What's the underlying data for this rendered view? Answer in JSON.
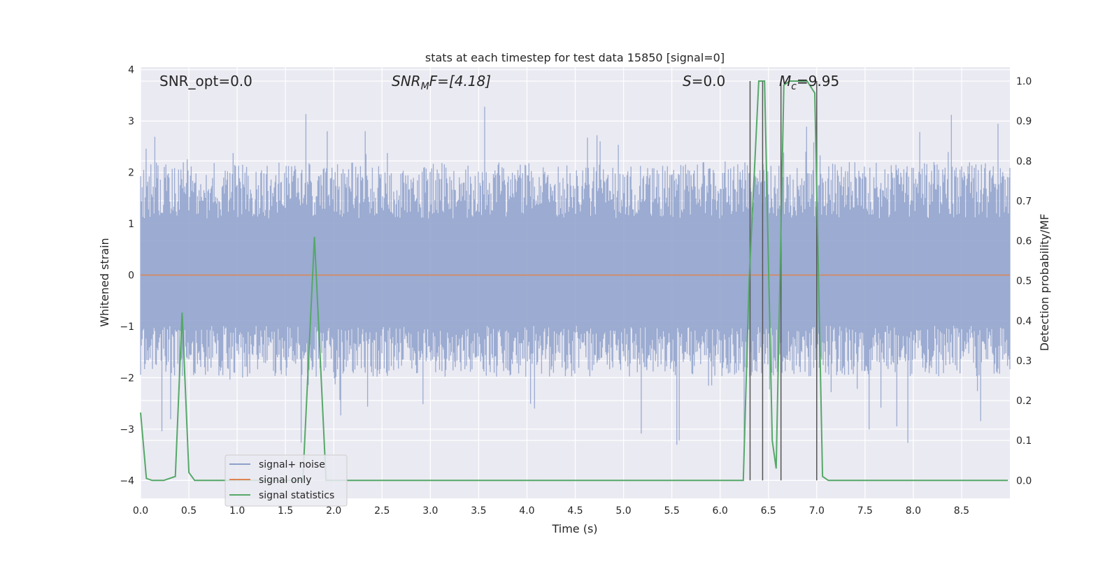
{
  "chart_data": {
    "type": "line",
    "title": "stats at each timestep for test data 15850 [signal=0]",
    "xlabel": "Time (s)",
    "ylabel_left": "Whitened strain",
    "ylabel_right": "Detection probability/MF",
    "xlim": [
      0,
      9.0
    ],
    "ylim_left": [
      -4.35,
      4.05
    ],
    "ylim_right": [
      -0.045,
      1.035
    ],
    "x_ticks": [
      "0.0",
      "0.5",
      "1.0",
      "1.5",
      "2.0",
      "2.5",
      "3.0",
      "3.5",
      "4.0",
      "4.5",
      "5.0",
      "5.5",
      "6.0",
      "6.5",
      "7.0",
      "7.5",
      "8.0",
      "8.5"
    ],
    "y_ticks_left": [
      "4",
      "3",
      "2",
      "1",
      "0",
      "−1",
      "−2",
      "−3",
      "−4"
    ],
    "y_ticks_right": [
      "1.0",
      "0.9",
      "0.8",
      "0.7",
      "0.6",
      "0.5",
      "0.4",
      "0.3",
      "0.2",
      "0.1",
      "0.0"
    ],
    "grid": true,
    "legend_placement": "lower-left",
    "annotations": {
      "snr_opt": "SNR_opt=0.0",
      "snr_mf_base": "SNR",
      "snr_mf_sub": "M",
      "snr_mf_rest": "F=[4.18]",
      "s_italic": "S",
      "s_rest": "=0.0",
      "mc_italic": "M",
      "mc_sub": "c",
      "mc_rest": "=9.95"
    },
    "series": [
      {
        "name": "signal+ noise",
        "color": "#8da0cb",
        "description_kind": "whitened noise, approx. |mean| 1.7, peaks up to 3.3 and down to -4.0",
        "envelope": {
          "upper_typical": 2.0,
          "lower_typical": -1.8,
          "max": 3.3,
          "min": -4.0
        }
      },
      {
        "name": "signal only",
        "color": "#dd8452",
        "x": [
          0,
          9.0
        ],
        "y": [
          0,
          0
        ]
      },
      {
        "name": "signal statistics",
        "color": "#55a868",
        "axis": "right",
        "x": [
          0.0,
          0.06,
          0.12,
          0.24,
          0.36,
          0.43,
          0.5,
          0.56,
          0.62,
          1.68,
          1.8,
          1.92,
          1.98,
          6.24,
          6.3,
          6.4,
          6.46,
          6.54,
          6.58,
          6.66,
          6.72,
          6.9,
          6.98,
          7.06,
          7.12,
          8.98
        ],
        "y": [
          0.17,
          0.005,
          0.0,
          0.0,
          0.01,
          0.42,
          0.02,
          0.0,
          0.0,
          0.0,
          0.61,
          0.0,
          0.0,
          0.0,
          0.5,
          1.0,
          1.0,
          0.1,
          0.03,
          0.99,
          1.0,
          1.0,
          0.97,
          0.01,
          0.0,
          0.0
        ]
      }
    ],
    "vertical_lines": [
      6.31,
      6.44,
      6.63,
      7.0
    ],
    "vertical_line_color": "#555555",
    "background_color": "#eaeaf2"
  }
}
